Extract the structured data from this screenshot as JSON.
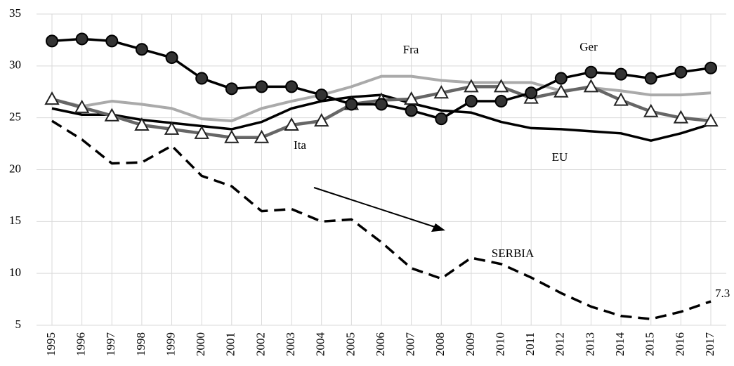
{
  "chart_data": {
    "type": "line",
    "categories": [
      "1995",
      "1996",
      "1997",
      "1998",
      "1999",
      "2000",
      "2001",
      "2002",
      "2003",
      "2004",
      "2005",
      "2006",
      "2007",
      "2008",
      "2009",
      "2010",
      "2011",
      "2012",
      "2013",
      "2014",
      "2015",
      "2016",
      "2017"
    ],
    "ylim": [
      5,
      35
    ],
    "yticks": [
      5,
      10,
      15,
      20,
      25,
      30,
      35
    ],
    "grid": true,
    "series": [
      {
        "name": "Fra",
        "color": "#aaaaaa",
        "marker": "none",
        "dash": false,
        "values": [
          26.8,
          26.1,
          26.6,
          26.3,
          25.9,
          24.9,
          24.7,
          25.9,
          26.6,
          27.2,
          28.0,
          29.0,
          29.0,
          28.6,
          28.4,
          28.4,
          28.4,
          27.6,
          27.9,
          27.6,
          27.2,
          27.2,
          27.4
        ]
      },
      {
        "name": "EU",
        "color": "#000000",
        "marker": "none",
        "dash": false,
        "values": [
          25.9,
          25.3,
          25.3,
          24.8,
          24.5,
          24.2,
          23.9,
          24.6,
          25.9,
          26.6,
          27.0,
          27.2,
          26.4,
          25.7,
          25.5,
          24.6,
          24.0,
          23.9,
          23.7,
          23.5,
          22.8,
          23.5,
          24.4
        ]
      },
      {
        "name": "SERBIA",
        "color": "#000000",
        "marker": "none",
        "dash": true,
        "values": [
          24.7,
          22.9,
          20.6,
          20.7,
          22.3,
          19.4,
          18.4,
          16.0,
          16.2,
          15.0,
          15.2,
          13.0,
          10.5,
          9.5,
          11.5,
          10.9,
          9.6,
          8.1,
          6.8,
          5.9,
          5.6,
          6.3,
          7.3
        ]
      },
      {
        "name": "Ita",
        "color": "#666666",
        "marker": "triangle",
        "dash": false,
        "values": [
          26.8,
          26.0,
          25.2,
          24.3,
          23.9,
          23.5,
          23.1,
          23.1,
          24.3,
          24.7,
          26.3,
          26.7,
          26.8,
          27.4,
          28.0,
          28.0,
          26.9,
          27.5,
          28.0,
          26.7,
          25.6,
          25.0,
          24.7
        ]
      },
      {
        "name": "Ger",
        "color": "#000000",
        "marker": "circle",
        "dash": false,
        "values": [
          32.4,
          32.6,
          32.4,
          31.6,
          30.8,
          28.8,
          27.8,
          28.0,
          28.0,
          27.2,
          26.3,
          26.3,
          25.7,
          24.9,
          26.6,
          26.6,
          27.4,
          28.8,
          29.4,
          29.2,
          28.8,
          29.4,
          29.8
        ]
      }
    ]
  }
}
